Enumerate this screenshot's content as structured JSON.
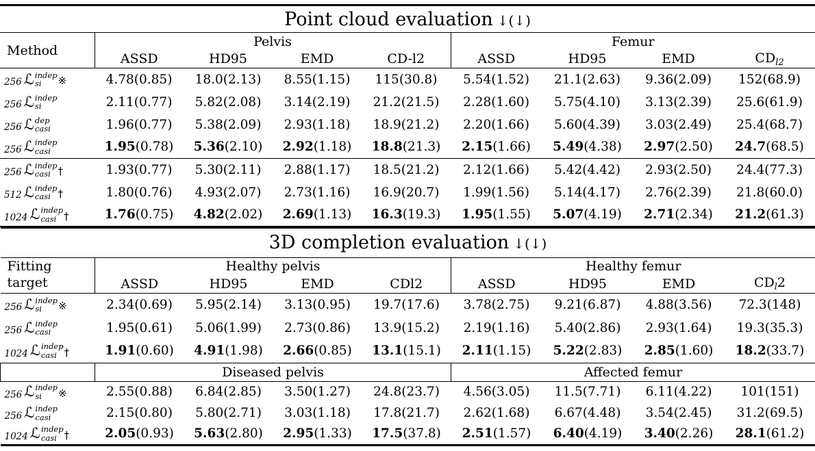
{
  "loss_symbol": "ℒ",
  "table1": {
    "title": "Point cloud evaluation",
    "title_arrows": "↓(↓)",
    "col1_header": "Method",
    "groups": [
      {
        "label": "Pelvis",
        "metrics": [
          {
            "t": "ASSD"
          },
          {
            "t": "HD95"
          },
          {
            "t": "EMD"
          },
          {
            "t": "CD-l2"
          }
        ]
      },
      {
        "label": "Femur",
        "metrics": [
          {
            "t": "ASSD"
          },
          {
            "t": "HD95"
          },
          {
            "t": "EMD"
          },
          {
            "t": "CD",
            "sub": "l2"
          }
        ]
      }
    ],
    "rows": [
      {
        "size": "256",
        "sup": "indep",
        "sub": "si",
        "marker": "※",
        "bold": false,
        "rule_above": false,
        "cells": [
          [
            "4.78",
            "0.85"
          ],
          [
            "18.0",
            "2.13"
          ],
          [
            "8.55",
            "1.15"
          ],
          [
            "115",
            "30.8"
          ],
          [
            "5.54",
            "1.52"
          ],
          [
            "21.1",
            "2.63"
          ],
          [
            "9.36",
            "2.09"
          ],
          [
            "152",
            "68.9"
          ]
        ]
      },
      {
        "size": "256",
        "sup": "indep",
        "sub": "si",
        "marker": "",
        "bold": false,
        "rule_above": false,
        "cells": [
          [
            "2.11",
            "0.77"
          ],
          [
            "5.82",
            "2.08"
          ],
          [
            "3.14",
            "2.19"
          ],
          [
            "21.2",
            "21.5"
          ],
          [
            "2.28",
            "1.60"
          ],
          [
            "5.75",
            "4.10"
          ],
          [
            "3.13",
            "2.39"
          ],
          [
            "25.6",
            "61.9"
          ]
        ]
      },
      {
        "size": "256",
        "sup": "dep",
        "sub": "casi",
        "marker": "",
        "bold": false,
        "rule_above": false,
        "cells": [
          [
            "1.96",
            "0.77"
          ],
          [
            "5.38",
            "2.09"
          ],
          [
            "2.93",
            "1.18"
          ],
          [
            "18.9",
            "21.2"
          ],
          [
            "2.20",
            "1.66"
          ],
          [
            "5.60",
            "4.39"
          ],
          [
            "3.03",
            "2.49"
          ],
          [
            "25.4",
            "68.7"
          ]
        ]
      },
      {
        "size": "256",
        "sup": "indep",
        "sub": "casi",
        "marker": "",
        "bold": true,
        "rule_above": false,
        "cells": [
          [
            "1.95",
            "0.78"
          ],
          [
            "5.36",
            "2.10"
          ],
          [
            "2.92",
            "1.18"
          ],
          [
            "18.8",
            "21.3"
          ],
          [
            "2.15",
            "1.66"
          ],
          [
            "5.49",
            "4.38"
          ],
          [
            "2.97",
            "2.50"
          ],
          [
            "24.7",
            "68.5"
          ]
        ]
      },
      {
        "size": "256",
        "sup": "indep",
        "sub": "casi",
        "marker": "†",
        "bold": false,
        "rule_above": true,
        "cells": [
          [
            "1.93",
            "0.77"
          ],
          [
            "5.30",
            "2.11"
          ],
          [
            "2.88",
            "1.17"
          ],
          [
            "18.5",
            "21.2"
          ],
          [
            "2.12",
            "1.66"
          ],
          [
            "5.42",
            "4.42"
          ],
          [
            "2.93",
            "2.50"
          ],
          [
            "24.4",
            "77.3"
          ]
        ]
      },
      {
        "size": "512",
        "sup": "indep",
        "sub": "casi",
        "marker": "†",
        "bold": false,
        "rule_above": false,
        "cells": [
          [
            "1.80",
            "0.76"
          ],
          [
            "4.93",
            "2.07"
          ],
          [
            "2.73",
            "1.16"
          ],
          [
            "16.9",
            "20.7"
          ],
          [
            "1.99",
            "1.56"
          ],
          [
            "5.14",
            "4.17"
          ],
          [
            "2.76",
            "2.39"
          ],
          [
            "21.8",
            "60.0"
          ]
        ]
      },
      {
        "size": "1024",
        "sup": "indep",
        "sub": "casi",
        "marker": "†",
        "bold": true,
        "rule_above": false,
        "cells": [
          [
            "1.76",
            "0.75"
          ],
          [
            "4.82",
            "2.02"
          ],
          [
            "2.69",
            "1.13"
          ],
          [
            "16.3",
            "19.3"
          ],
          [
            "1.95",
            "1.55"
          ],
          [
            "5.07",
            "4.19"
          ],
          [
            "2.71",
            "2.34"
          ],
          [
            "21.2",
            "61.3"
          ]
        ]
      }
    ]
  },
  "table2": {
    "title": "3D completion evaluation",
    "title_arrows": "↓(↓)",
    "col1_header_line1": "Fitting",
    "col1_header_line2": "target",
    "groups": [
      {
        "label": "Healthy pelvis",
        "metrics": [
          {
            "t": "ASSD"
          },
          {
            "t": "HD95"
          },
          {
            "t": "EMD"
          },
          {
            "t": "CDl2"
          }
        ]
      },
      {
        "label": "Healthy femur",
        "metrics": [
          {
            "t": "ASSD"
          },
          {
            "t": "HD95"
          },
          {
            "t": "EMD"
          },
          {
            "t": "CD",
            "sub": "l",
            "after": "2"
          }
        ]
      }
    ],
    "section1_rows": [
      {
        "size": "256",
        "sup": "indep",
        "sub": "si",
        "marker": "※",
        "bold": false,
        "rule_above": false,
        "cells": [
          [
            "2.34",
            "0.69"
          ],
          [
            "5.95",
            "2.14"
          ],
          [
            "3.13",
            "0.95"
          ],
          [
            "19.7",
            "17.6"
          ],
          [
            "3.78",
            "2.75"
          ],
          [
            "9.21",
            "6.87"
          ],
          [
            "4.88",
            "3.56"
          ],
          [
            "72.3",
            "148"
          ]
        ]
      },
      {
        "size": "256",
        "sup": "indep",
        "sub": "casi",
        "marker": "",
        "bold": false,
        "rule_above": false,
        "cells": [
          [
            "1.95",
            "0.61"
          ],
          [
            "5.06",
            "1.99"
          ],
          [
            "2.73",
            "0.86"
          ],
          [
            "13.9",
            "15.2"
          ],
          [
            "2.19",
            "1.16"
          ],
          [
            "5.40",
            "2.86"
          ],
          [
            "2.93",
            "1.64"
          ],
          [
            "19.3",
            "35.3"
          ]
        ]
      },
      {
        "size": "1024",
        "sup": "indep",
        "sub": "casi",
        "marker": "†",
        "bold": true,
        "rule_above": false,
        "cells": [
          [
            "1.91",
            "0.60"
          ],
          [
            "4.91",
            "1.98"
          ],
          [
            "2.66",
            "0.85"
          ],
          [
            "13.1",
            "15.1"
          ],
          [
            "2.11",
            "1.15"
          ],
          [
            "5.22",
            "2.83"
          ],
          [
            "2.85",
            "1.60"
          ],
          [
            "18.2",
            "33.7"
          ]
        ]
      }
    ],
    "subheader": {
      "groups": [
        "Diseased pelvis",
        "Affected femur"
      ]
    },
    "section2_rows": [
      {
        "size": "256",
        "sup": "indep",
        "sub": "si",
        "marker": "※",
        "bold": false,
        "rule_above": false,
        "cells": [
          [
            "2.55",
            "0.88"
          ],
          [
            "6.84",
            "2.85"
          ],
          [
            "3.50",
            "1.27"
          ],
          [
            "24.8",
            "23.7"
          ],
          [
            "4.56",
            "3.05"
          ],
          [
            "11.5",
            "7.71"
          ],
          [
            "6.11",
            "4.22"
          ],
          [
            "101",
            "151"
          ]
        ]
      },
      {
        "size": "256",
        "sup": "indep",
        "sub": "casi",
        "marker": "",
        "bold": false,
        "rule_above": false,
        "cells": [
          [
            "2.15",
            "0.80"
          ],
          [
            "5.80",
            "2.71"
          ],
          [
            "3.03",
            "1.18"
          ],
          [
            "17.8",
            "21.7"
          ],
          [
            "2.62",
            "1.68"
          ],
          [
            "6.67",
            "4.48"
          ],
          [
            "3.54",
            "2.45"
          ],
          [
            "31.2",
            "69.5"
          ]
        ]
      },
      {
        "size": "1024",
        "sup": "indep",
        "sub": "casi",
        "marker": "†",
        "bold": true,
        "rule_above": false,
        "cells": [
          [
            "2.05",
            "0.93"
          ],
          [
            "5.63",
            "2.80"
          ],
          [
            "2.95",
            "1.33"
          ],
          [
            "17.5",
            "37.8"
          ],
          [
            "2.51",
            "1.57"
          ],
          [
            "6.40",
            "4.19"
          ],
          [
            "3.40",
            "2.26"
          ],
          [
            "28.1",
            "61.2"
          ]
        ]
      }
    ]
  }
}
